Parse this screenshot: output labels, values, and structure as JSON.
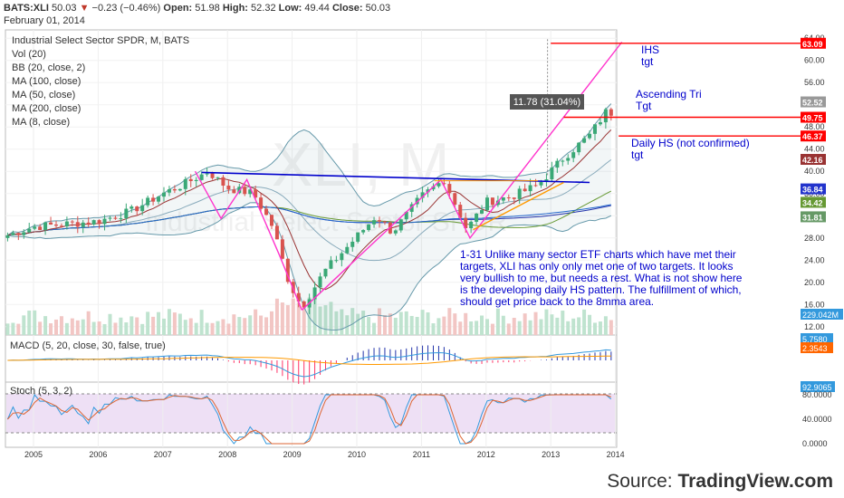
{
  "header": {
    "symbol": "BATS:XLI",
    "last": "50.03",
    "change": "−0.23 (−0.46%)",
    "open_label": "Open:",
    "open": "51.98",
    "high_label": "High:",
    "high": "52.32",
    "low_label": "Low:",
    "low": "49.44",
    "close_label": "Close:",
    "close": "50.03",
    "date": "February 01, 2014"
  },
  "legend": {
    "title": "Industrial Select Sector SPDR, M, BATS",
    "items": [
      "Vol (20)",
      "BB (20, close, 2)",
      "MA (100, close)",
      "MA (50, close)",
      "MA (200, close)",
      "MA (8, close)"
    ]
  },
  "watermark": {
    "symbol": "XLI, M",
    "name": "Industrial Select Sector SPDR"
  },
  "colors": {
    "up": "#3aa876",
    "down": "#d9534f",
    "pink": "#ff33cc",
    "blue": "#0000cc",
    "red": "#ff0000",
    "orange": "#ff9900",
    "bb": "#6699aa",
    "ma100": "#2233aa",
    "ma50": "#669933",
    "ma200": "#2266cc",
    "ma8": "#993333",
    "stoch_k": "#3399dd",
    "stoch_d": "#dd6633"
  },
  "chart_data": {
    "type": "candlestick",
    "x_ticks": [
      "2005",
      "2006",
      "2007",
      "2008",
      "2009",
      "2010",
      "2011",
      "2012",
      "2013",
      "2014"
    ],
    "y_ticks": [
      "64.00",
      "60.00",
      "56.00",
      "52.00",
      "48.00",
      "44.00",
      "40.00",
      "36.00",
      "32.00",
      "28.00",
      "24.00",
      "20.00",
      "16.00",
      "12.00"
    ],
    "ylim": [
      10.5,
      65.5
    ],
    "price_points": [
      {
        "year": 2004.6,
        "close": 28.5
      },
      {
        "year": 2005.0,
        "close": 30.0
      },
      {
        "year": 2005.5,
        "close": 30.5
      },
      {
        "year": 2006.0,
        "close": 31.0
      },
      {
        "year": 2006.5,
        "close": 32.8
      },
      {
        "year": 2007.0,
        "close": 36.0
      },
      {
        "year": 2007.3,
        "close": 37.5
      },
      {
        "year": 2007.7,
        "close": 40.0
      },
      {
        "year": 2008.0,
        "close": 37.0
      },
      {
        "year": 2008.4,
        "close": 36.0
      },
      {
        "year": 2008.7,
        "close": 30.0
      },
      {
        "year": 2008.95,
        "close": 20.0
      },
      {
        "year": 2009.15,
        "close": 15.5
      },
      {
        "year": 2009.5,
        "close": 22.0
      },
      {
        "year": 2009.9,
        "close": 27.0
      },
      {
        "year": 2010.3,
        "close": 32.0
      },
      {
        "year": 2010.55,
        "close": 29.0
      },
      {
        "year": 2011.0,
        "close": 35.5
      },
      {
        "year": 2011.35,
        "close": 38.5
      },
      {
        "year": 2011.7,
        "close": 29.5
      },
      {
        "year": 2012.0,
        "close": 34.5
      },
      {
        "year": 2012.4,
        "close": 35.5
      },
      {
        "year": 2012.8,
        "close": 37.5
      },
      {
        "year": 2013.2,
        "close": 42.5
      },
      {
        "year": 2013.6,
        "close": 46.5
      },
      {
        "year": 2013.9,
        "close": 51.5
      },
      {
        "year": 2014.0,
        "close": 50.03
      }
    ],
    "price_labels": [
      {
        "text": "63.09",
        "value": 63.09,
        "color": "#ff0000"
      },
      {
        "text": "52.52",
        "value": 52.52,
        "color": "#999999"
      },
      {
        "text": "49.75",
        "value": 49.75,
        "color": "#ff0000"
      },
      {
        "text": "46.37",
        "value": 46.37,
        "color": "#ff0000"
      },
      {
        "text": "42.16",
        "value": 42.16,
        "color": "#993333"
      },
      {
        "text": "36.84",
        "value": 36.84,
        "color": "#2233cc"
      },
      {
        "text": "34.42",
        "value": 34.42,
        "color": "#669933"
      },
      {
        "text": "31.81",
        "value": 31.81,
        "color": "#669966"
      }
    ],
    "volume_label": "229.042M",
    "measure_label": "11.78 (31.04%)",
    "annotations": {
      "ihs": [
        "IHS",
        "tgt"
      ],
      "tri": [
        "Ascending Tri",
        "Tgt"
      ],
      "hs": [
        "Daily HS (not confirmed)",
        "tgt"
      ],
      "note": [
        "1-31  Unlike many sector ETF charts which have met their",
        "targets, XLI has only only met one of two targets.  It looks",
        "very bullish to me, but needs a rest.  What is not show here",
        "is the developing daily HS pattern.  The fulfillment of which,",
        "should get price back to the 8mma area."
      ]
    },
    "macd": {
      "label": "MACD (5, 20, close, 30, false, true)",
      "values": [
        "5.7580",
        "2.3543"
      ]
    },
    "stoch": {
      "label": "Stoch (5, 3, 2)",
      "value": "92.9065",
      "y_ticks": [
        "80.0000",
        "40.0000",
        "0.0000"
      ]
    }
  },
  "source": {
    "prefix": "Source: ",
    "name": "TradingView.com"
  }
}
